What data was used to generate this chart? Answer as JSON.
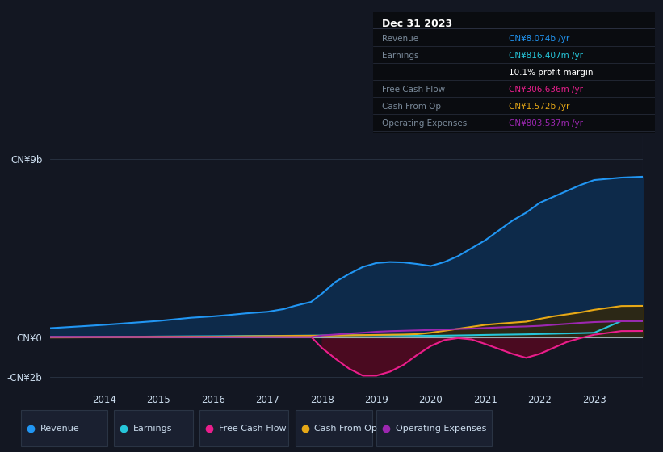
{
  "bg_color": "#131722",
  "chart_bg": "#131722",
  "panel_bg": "#1e2330",
  "title": "Dec 31 2023",
  "table_rows": [
    {
      "label": "Revenue",
      "value": "CN¥8.074b /yr",
      "label_color": "#7a8a9a",
      "value_color": "#2196f3"
    },
    {
      "label": "Earnings",
      "value": "CN¥816.407m /yr",
      "label_color": "#7a8a9a",
      "value_color": "#26c6da"
    },
    {
      "label": "",
      "value": "10.1% profit margin",
      "label_color": "#7a8a9a",
      "value_color": "#ffffff"
    },
    {
      "label": "Free Cash Flow",
      "value": "CN¥306.636m /yr",
      "label_color": "#7a8a9a",
      "value_color": "#e91e8c"
    },
    {
      "label": "Cash From Op",
      "value": "CN¥1.572b /yr",
      "label_color": "#7a8a9a",
      "value_color": "#e6a817"
    },
    {
      "label": "Operating Expenses",
      "value": "CN¥803.537m /yr",
      "label_color": "#7a8a9a",
      "value_color": "#9c27b0"
    }
  ],
  "ylim": [
    -2500000000.0,
    10200000000.0
  ],
  "ytick_vals": [
    9000000000.0,
    0,
    -2000000000.0
  ],
  "ytick_labels": [
    "CN¥9b",
    "CN¥0",
    "-CN¥2b"
  ],
  "xticks": [
    2014,
    2015,
    2016,
    2017,
    2018,
    2019,
    2020,
    2021,
    2022,
    2023
  ],
  "revenue_color": "#2196f3",
  "revenue_fill": "#0d2a4a",
  "earnings_color": "#26c6da",
  "fcf_color": "#e91e8c",
  "fcf_fill": "#4a0a20",
  "cashfromop_color": "#e6a817",
  "cashfromop_fill": "#3a2800",
  "opex_color": "#9c27b0",
  "legend": [
    {
      "label": "Revenue",
      "color": "#2196f3"
    },
    {
      "label": "Earnings",
      "color": "#26c6da"
    },
    {
      "label": "Free Cash Flow",
      "color": "#e91e8c"
    },
    {
      "label": "Cash From Op",
      "color": "#e6a817"
    },
    {
      "label": "Operating Expenses",
      "color": "#9c27b0"
    }
  ],
  "years": [
    2013.0,
    2013.3,
    2013.6,
    2014.0,
    2014.3,
    2014.6,
    2015.0,
    2015.3,
    2015.6,
    2016.0,
    2016.3,
    2016.6,
    2017.0,
    2017.3,
    2017.5,
    2017.8,
    2018.0,
    2018.25,
    2018.5,
    2018.75,
    2019.0,
    2019.25,
    2019.5,
    2019.75,
    2020.0,
    2020.25,
    2020.5,
    2020.75,
    2021.0,
    2021.25,
    2021.5,
    2021.75,
    2022.0,
    2022.25,
    2022.5,
    2022.75,
    2023.0,
    2023.5,
    2023.9
  ],
  "revenue": [
    450000000.0,
    500000000.0,
    550000000.0,
    620000000.0,
    680000000.0,
    740000000.0,
    820000000.0,
    900000000.0,
    980000000.0,
    1050000000.0,
    1120000000.0,
    1200000000.0,
    1280000000.0,
    1420000000.0,
    1580000000.0,
    1780000000.0,
    2200000000.0,
    2800000000.0,
    3200000000.0,
    3550000000.0,
    3750000000.0,
    3800000000.0,
    3780000000.0,
    3700000000.0,
    3600000000.0,
    3800000000.0,
    4100000000.0,
    4500000000.0,
    4900000000.0,
    5400000000.0,
    5900000000.0,
    6300000000.0,
    6800000000.0,
    7100000000.0,
    7400000000.0,
    7700000000.0,
    7950000000.0,
    8074000000.0,
    8120000000.0
  ],
  "earnings": [
    10000000.0,
    10000000.0,
    10000000.0,
    15000000.0,
    20000000.0,
    20000000.0,
    30000000.0,
    35000000.0,
    40000000.0,
    45000000.0,
    50000000.0,
    55000000.0,
    60000000.0,
    65000000.0,
    70000000.0,
    75000000.0,
    80000000.0,
    85000000.0,
    90000000.0,
    90000000.0,
    88000000.0,
    83000000.0,
    78000000.0,
    73000000.0,
    68000000.0,
    75000000.0,
    85000000.0,
    95000000.0,
    110000000.0,
    120000000.0,
    130000000.0,
    140000000.0,
    155000000.0,
    170000000.0,
    185000000.0,
    200000000.0,
    220000000.0,
    816000000.0,
    820000000.0
  ],
  "fcf": [
    5000000.0,
    5000000.0,
    7000000.0,
    8000000.0,
    9000000.0,
    10000000.0,
    12000000.0,
    13000000.0,
    15000000.0,
    15000000.0,
    18000000.0,
    20000000.0,
    22000000.0,
    25000000.0,
    22000000.0,
    18000000.0,
    -550000000.0,
    -1100000000.0,
    -1600000000.0,
    -1950000000.0,
    -1950000000.0,
    -1750000000.0,
    -1400000000.0,
    -900000000.0,
    -450000000.0,
    -150000000.0,
    -50000000.0,
    -120000000.0,
    -350000000.0,
    -600000000.0,
    -850000000.0,
    -1050000000.0,
    -850000000.0,
    -550000000.0,
    -250000000.0,
    -50000000.0,
    120000000.0,
    306000000.0,
    310000000.0
  ],
  "cashfromop": [
    -20000000.0,
    -18000000.0,
    -15000000.0,
    -12000000.0,
    -8000000.0,
    -5000000.0,
    5000000.0,
    10000000.0,
    15000000.0,
    20000000.0,
    30000000.0,
    40000000.0,
    50000000.0,
    60000000.0,
    65000000.0,
    68000000.0,
    70000000.0,
    80000000.0,
    90000000.0,
    100000000.0,
    110000000.0,
    120000000.0,
    130000000.0,
    150000000.0,
    220000000.0,
    320000000.0,
    420000000.0,
    520000000.0,
    620000000.0,
    680000000.0,
    730000000.0,
    780000000.0,
    920000000.0,
    1050000000.0,
    1150000000.0,
    1250000000.0,
    1380000000.0,
    1572000000.0,
    1580000000.0
  ],
  "opex": [
    0.0,
    0.0,
    0.0,
    0.0,
    0.0,
    0.0,
    0.0,
    0.0,
    0.0,
    0.0,
    0.0,
    0.0,
    0.0,
    0.0,
    0.0,
    0.0,
    80000000.0,
    130000000.0,
    180000000.0,
    220000000.0,
    270000000.0,
    300000000.0,
    320000000.0,
    340000000.0,
    360000000.0,
    380000000.0,
    410000000.0,
    430000000.0,
    460000000.0,
    490000000.0,
    520000000.0,
    540000000.0,
    570000000.0,
    620000000.0,
    670000000.0,
    720000000.0,
    760000000.0,
    803000000.0,
    810000000.0
  ]
}
